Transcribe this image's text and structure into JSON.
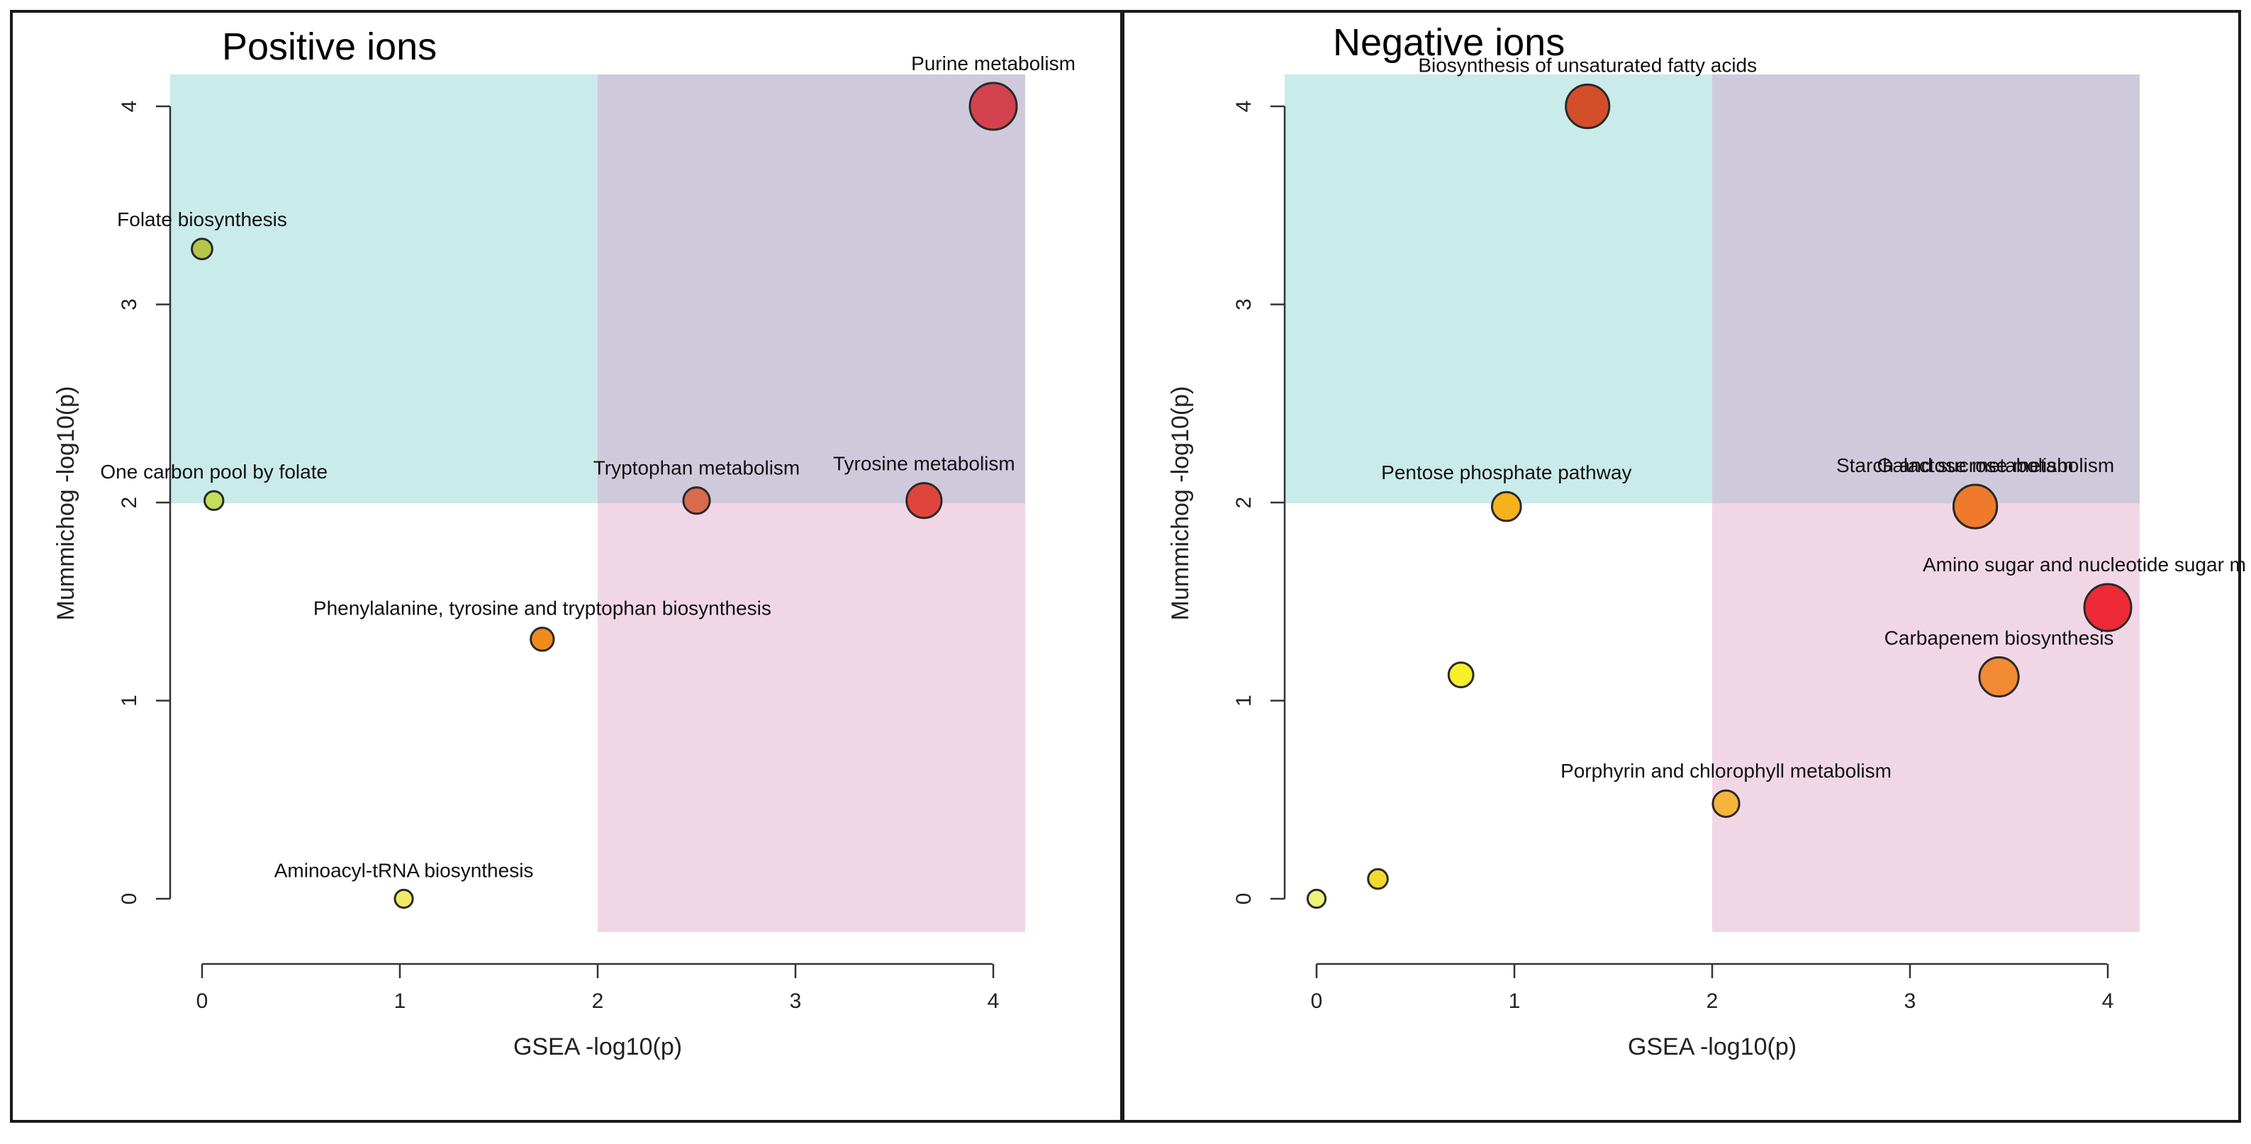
{
  "chart_data": [
    {
      "type": "scatter",
      "title": "Positive ions",
      "xlabel": "GSEA -log10(p)",
      "ylabel": "Mummichog -log10(p)",
      "xlim": [
        0,
        4
      ],
      "ylim": [
        0,
        4
      ],
      "xticks": [
        "0",
        "1",
        "2",
        "3",
        "4"
      ],
      "yticks": [
        "0",
        "1",
        "2",
        "3",
        "4"
      ],
      "quadrants": {
        "top_left": "#c9ebea",
        "top_right": "#cfcadb",
        "bottom_right": "#f1d7e6"
      },
      "points": [
        {
          "label": "Purine metabolism",
          "x": 4.0,
          "y": 4.0,
          "size": 4.0,
          "color": "#d3424f"
        },
        {
          "label": "Folate biosynthesis",
          "x": 0.0,
          "y": 3.28,
          "size": 0.9,
          "color": "#b5c64a"
        },
        {
          "label": "One carbon pool by folate",
          "x": 0.06,
          "y": 2.01,
          "size": 0.7,
          "color": "#c5dd57"
        },
        {
          "label": "Tryptophan metabolism",
          "x": 2.5,
          "y": 2.01,
          "size": 1.6,
          "color": "#d86b4d"
        },
        {
          "label": "Tyrosine metabolism",
          "x": 3.65,
          "y": 2.01,
          "size": 2.6,
          "color": "#e0453c"
        },
        {
          "label": "Phenylalanine, tyrosine and tryptophan biosynthesis",
          "x": 1.72,
          "y": 1.31,
          "size": 1.2,
          "color": "#f08a1c"
        },
        {
          "label": "Aminoacyl-tRNA biosynthesis",
          "x": 1.02,
          "y": 0.0,
          "size": 0.6,
          "color": "#f2ea64"
        }
      ]
    },
    {
      "type": "scatter",
      "title": "Negative ions",
      "xlabel": "GSEA -log10(p)",
      "ylabel": "Mummichog -log10(p)",
      "xlim": [
        0,
        4
      ],
      "ylim": [
        0,
        4
      ],
      "xticks": [
        "0",
        "1",
        "2",
        "3",
        "4"
      ],
      "yticks": [
        "0",
        "1",
        "2",
        "3",
        "4"
      ],
      "quadrants": {
        "top_left": "#c9ebea",
        "top_right": "#cfcadb",
        "bottom_right": "#f1d7e6"
      },
      "points": [
        {
          "label": "Biosynthesis of unsaturated fatty acids",
          "x": 1.37,
          "y": 4.0,
          "size": 3.6,
          "color": "#d24f2a"
        },
        {
          "label": "Pentose phosphate pathway",
          "x": 0.96,
          "y": 1.98,
          "size": 1.9,
          "color": "#f5b21c"
        },
        {
          "label": "Starch and sucrose metabolism",
          "x": 3.33,
          "y": 1.98,
          "size": 3.6,
          "color": "#f07a2c"
        },
        {
          "label": "Galactose metabolism",
          "x": 3.33,
          "y": 1.98,
          "size": 3.6,
          "color": "#f07a2c"
        },
        {
          "label": "Amino sugar and nucleotide sugar m",
          "x": 4.0,
          "y": 1.47,
          "size": 4.0,
          "color": "#ee2a36"
        },
        {
          "label": "Carbapenem biosynthesis",
          "x": 3.45,
          "y": 1.12,
          "size": 3.1,
          "color": "#f28a34"
        },
        {
          "label": "",
          "x": 0.73,
          "y": 1.13,
          "size": 1.4,
          "color": "#f6ef2a"
        },
        {
          "label": "Porphyrin and chlorophyll metabolism",
          "x": 2.07,
          "y": 0.48,
          "size": 1.6,
          "color": "#f6b43c"
        },
        {
          "label": "",
          "x": 0.31,
          "y": 0.1,
          "size": 0.8,
          "color": "#f4d92c"
        },
        {
          "label": "",
          "x": 0.0,
          "y": 0.0,
          "size": 0.6,
          "color": "#eef27a"
        }
      ]
    }
  ]
}
